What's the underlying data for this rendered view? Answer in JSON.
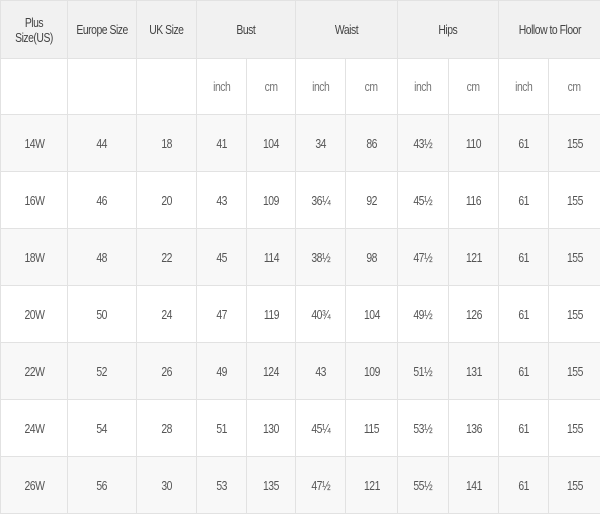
{
  "headers": [
    "Plus Size(US)",
    "Europe Size",
    "UK Size",
    "Bust",
    "Waist",
    "Hips",
    "Hollow to Floor"
  ],
  "units": [
    "inch",
    "cm"
  ],
  "rows": [
    [
      "14W",
      "44",
      "18",
      "41",
      "104",
      "34",
      "86",
      "43½",
      "110",
      "61",
      "155"
    ],
    [
      "16W",
      "46",
      "20",
      "43",
      "109",
      "36¼",
      "92",
      "45½",
      "116",
      "61",
      "155"
    ],
    [
      "18W",
      "48",
      "22",
      "45",
      "114",
      "38½",
      "98",
      "47½",
      "121",
      "61",
      "155"
    ],
    [
      "20W",
      "50",
      "24",
      "47",
      "119",
      "40¾",
      "104",
      "49½",
      "126",
      "61",
      "155"
    ],
    [
      "22W",
      "52",
      "26",
      "49",
      "124",
      "43",
      "109",
      "51½",
      "131",
      "61",
      "155"
    ],
    [
      "24W",
      "54",
      "28",
      "51",
      "130",
      "45¼",
      "115",
      "53½",
      "136",
      "61",
      "155"
    ],
    [
      "26W",
      "56",
      "30",
      "53",
      "135",
      "47½",
      "121",
      "55½",
      "141",
      "61",
      "155"
    ]
  ]
}
